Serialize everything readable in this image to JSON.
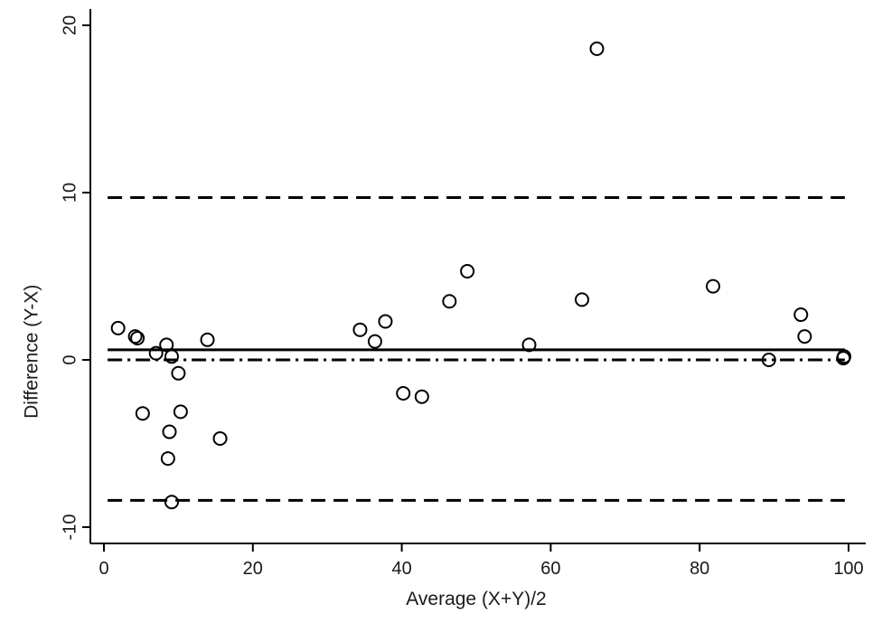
{
  "chart_data": {
    "type": "scatter",
    "title": "",
    "xlabel": "Average (X+Y)/2",
    "ylabel": "Difference (Y-X)",
    "xlim": [
      0,
      100
    ],
    "ylim": [
      -11,
      21
    ],
    "xticks": [
      0,
      20,
      40,
      60,
      80,
      100
    ],
    "xtick_labels": [
      "0",
      "20",
      "40",
      "60",
      "80",
      "100"
    ],
    "yticks": [
      -10,
      0,
      10,
      20
    ],
    "ytick_labels": [
      "-10",
      "0",
      "10",
      "20"
    ],
    "grid": false,
    "legend": "none",
    "colors": {
      "ink": "#000000"
    },
    "reference_lines": [
      {
        "role": "upper-limit",
        "y": 9.7,
        "style": "dashed"
      },
      {
        "role": "mean-difference",
        "y": 0.6,
        "style": "solid"
      },
      {
        "role": "zero-line",
        "y": 0.0,
        "style": "dash-dot"
      },
      {
        "role": "lower-limit",
        "y": -8.4,
        "style": "dashed"
      }
    ],
    "points": [
      {
        "x": 1.9,
        "y": 1.9
      },
      {
        "x": 4.2,
        "y": 1.4
      },
      {
        "x": 4.5,
        "y": 1.3
      },
      {
        "x": 5.2,
        "y": -3.2
      },
      {
        "x": 7.0,
        "y": 0.4
      },
      {
        "x": 8.4,
        "y": 0.9
      },
      {
        "x": 8.6,
        "y": -5.9
      },
      {
        "x": 8.8,
        "y": -4.3
      },
      {
        "x": 9.1,
        "y": 0.2
      },
      {
        "x": 9.1,
        "y": -8.5
      },
      {
        "x": 10.0,
        "y": -0.8
      },
      {
        "x": 10.3,
        "y": -3.1
      },
      {
        "x": 13.9,
        "y": 1.2
      },
      {
        "x": 15.6,
        "y": -4.7
      },
      {
        "x": 34.4,
        "y": 1.8
      },
      {
        "x": 36.4,
        "y": 1.1
      },
      {
        "x": 37.8,
        "y": 2.3
      },
      {
        "x": 40.2,
        "y": -2.0
      },
      {
        "x": 42.7,
        "y": -2.2
      },
      {
        "x": 46.4,
        "y": 3.5
      },
      {
        "x": 48.8,
        "y": 5.3
      },
      {
        "x": 57.1,
        "y": 0.9
      },
      {
        "x": 64.2,
        "y": 3.6
      },
      {
        "x": 66.2,
        "y": 18.6
      },
      {
        "x": 81.8,
        "y": 4.4
      },
      {
        "x": 89.3,
        "y": 0.0
      },
      {
        "x": 93.6,
        "y": 2.7
      },
      {
        "x": 94.1,
        "y": 1.4
      },
      {
        "x": 99.3,
        "y": 0.1
      },
      {
        "x": 99.4,
        "y": 0.2
      }
    ]
  }
}
